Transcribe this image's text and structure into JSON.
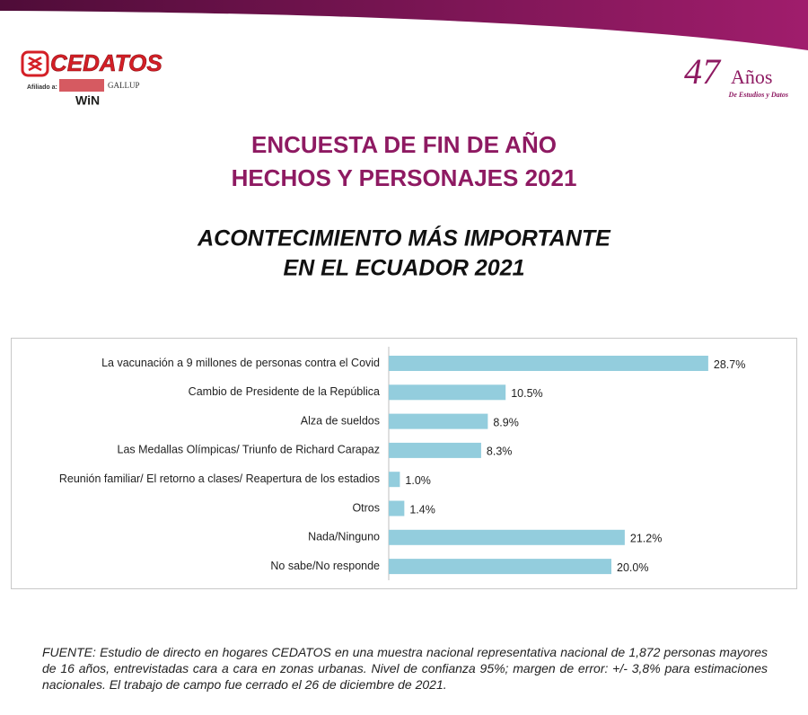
{
  "header": {
    "logo": "CEDATOS",
    "affiliation": "Afiliado a:",
    "win": "WiN",
    "gallup": "GALLUP",
    "anniversary_number": "47",
    "anniversary_word": "Años",
    "anniversary_sub": "De Estudios y Datos"
  },
  "survey_title": [
    "ENCUESTA DE FIN DE AÑO",
    "HECHOS Y PERSONAJES 2021"
  ],
  "chart_data": {
    "type": "bar",
    "orientation": "horizontal",
    "title": [
      "ACONTECIMIENTO MÁS IMPORTANTE",
      "EN EL ECUADOR 2021"
    ],
    "categories": [
      "La vacunación a 9 millones de personas contra el Covid",
      "Cambio de Presidente de la República",
      "Alza de sueldos",
      "Las Medallas Olímpicas/ Triunfo de Richard Carapaz",
      "Reunión familiar/ El retorno a clases/ Reapertura de los estadios",
      "Otros",
      "Nada/Ninguno",
      "No sabe/No responde"
    ],
    "values": [
      28.7,
      10.5,
      8.9,
      8.3,
      1.0,
      1.4,
      21.2,
      20.0
    ],
    "value_labels": [
      "28.7%",
      "10.5%",
      "8.9%",
      "8.3%",
      "1.0%",
      "1.4%",
      "21.2%",
      "20.0%"
    ],
    "color": "#93cddd"
  },
  "footer": "FUENTE: Estudio de directo en hogares CEDATOS en una muestra nacional representativa nacional de 1,872 personas mayores de 16 años, entrevistadas cara a cara en zonas urbanas. Nivel de confianza 95%; margen de error: +/- 3,8% para estimaciones nacionales. El trabajo de campo fue cerrado el 26 de diciembre de 2021."
}
